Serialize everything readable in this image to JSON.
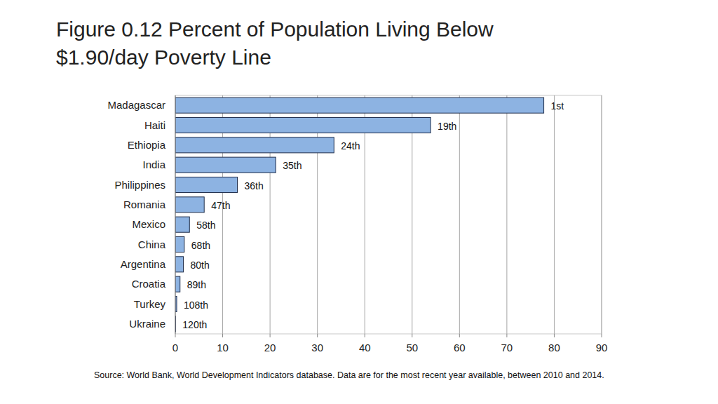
{
  "chart_data": {
    "type": "bar",
    "orientation": "horizontal",
    "title": "Figure 0.12 Percent of Population Living Below $1.90/day Poverty Line",
    "categories": [
      "Madagascar",
      "Haiti",
      "Ethiopia",
      "India",
      "Philippines",
      "Romania",
      "Mexico",
      "China",
      "Argentina",
      "Croatia",
      "Turkey",
      "Ukraine"
    ],
    "values": [
      77.8,
      53.9,
      33.5,
      21.2,
      13.1,
      6.1,
      3.0,
      1.9,
      1.7,
      1.0,
      0.3,
      0.05
    ],
    "annotations": [
      "1st",
      "19th",
      "24th",
      "35th",
      "36th",
      "47th",
      "58th",
      "68th",
      "80th",
      "89th",
      "108th",
      "120th"
    ],
    "color": "#8db3e2",
    "xlim": [
      0,
      90
    ],
    "xticks": [
      0,
      10,
      20,
      30,
      40,
      50,
      60,
      70,
      80,
      90
    ],
    "grid": true,
    "source": "Source: World Bank, World Development Indicators database. Data are for the most recent year available, between 2010 and 2014."
  }
}
